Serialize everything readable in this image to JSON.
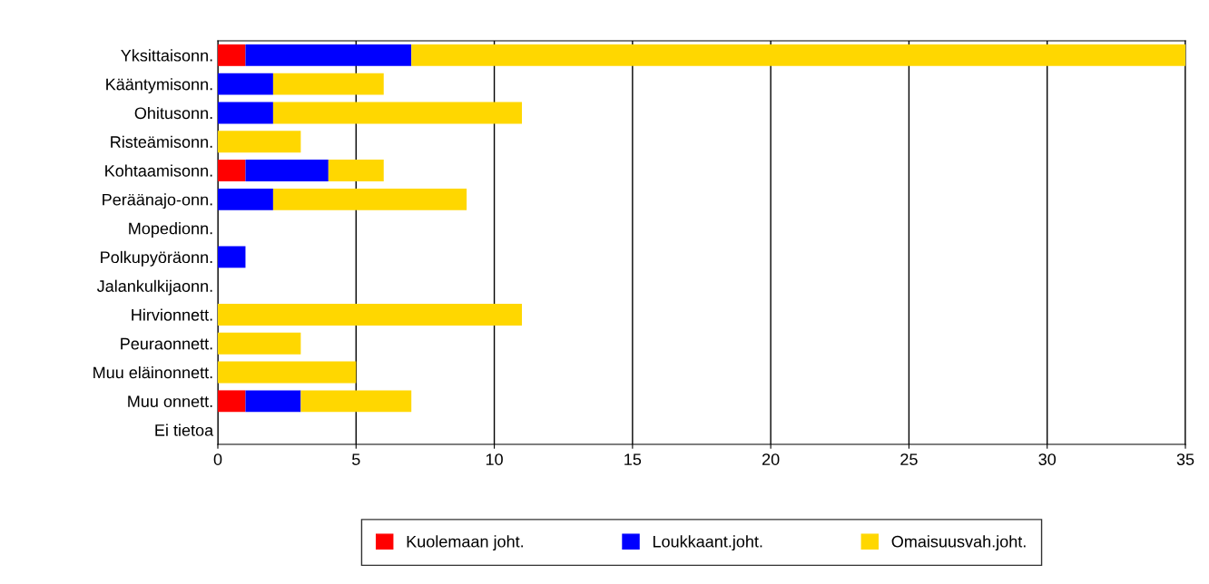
{
  "chart_data": {
    "type": "bar",
    "orientation": "horizontal",
    "stacked": true,
    "categories": [
      "Yksittaisonn.",
      "Kääntymisonn.",
      "Ohitusonn.",
      "Risteämisonn.",
      "Kohtaamisonn.",
      "Peräänajo-onn.",
      "Mopedionn.",
      "Polkupyöräonn.",
      "Jalankulkijaonn.",
      "Hirvionnett.",
      "Peuraonnett.",
      "Muu eläinonnett.",
      "Muu onnett.",
      "Ei tietoa"
    ],
    "series": [
      {
        "name": "Kuolemaan joht.",
        "color": "#ff0000",
        "values": [
          1,
          0,
          0,
          0,
          1,
          0,
          0,
          0,
          0,
          0,
          0,
          0,
          1,
          0
        ]
      },
      {
        "name": "Loukkaant.joht.",
        "color": "#0000ff",
        "values": [
          6,
          2,
          2,
          0,
          3,
          2,
          0,
          1,
          0,
          0,
          0,
          0,
          2,
          0
        ]
      },
      {
        "name": "Omaisuusvah.joht.",
        "color": "#ffd700",
        "values": [
          28,
          4,
          9,
          3,
          2,
          7,
          0,
          0,
          0,
          11,
          3,
          5,
          4,
          0
        ]
      }
    ],
    "xlim": [
      0,
      35
    ],
    "xticks": [
      0,
      5,
      10,
      15,
      20,
      25,
      30,
      35
    ],
    "grid": "x",
    "legend": "bottom"
  }
}
